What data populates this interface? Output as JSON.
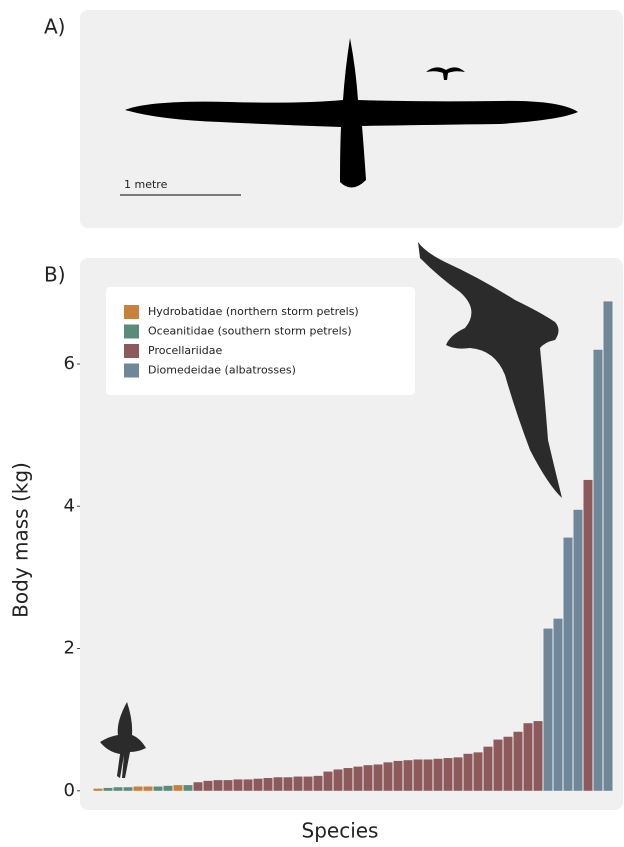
{
  "panel_a": {
    "label": "A)",
    "scale_label": "1 metre"
  },
  "chart_data": {
    "type": "bar",
    "panel_label": "B)",
    "x_label": "Species",
    "y_label": "Body mass (kg)",
    "ylim": [
      -0.27,
      7.49
    ],
    "yticks": [
      0,
      2,
      4,
      6
    ],
    "legend": "top-left",
    "series": [
      {
        "name": "Hydrobatidae (northern storm petrels)",
        "color": "#c8813a",
        "values": [
          0.03,
          null,
          null,
          null,
          0.06,
          0.06,
          null,
          null,
          0.08,
          null,
          null,
          null,
          null,
          null,
          null,
          null,
          null,
          null,
          null,
          null,
          null,
          null,
          null,
          null,
          null,
          null,
          null,
          null,
          null,
          null,
          null,
          null,
          null,
          null,
          null,
          null,
          null,
          null,
          null,
          null,
          null,
          null,
          null,
          null,
          null,
          null,
          null,
          null,
          null,
          null,
          null,
          null
        ]
      },
      {
        "name": "Oceanitidae (southern storm petrels)",
        "color": "#5b8c7b",
        "values": [
          null,
          0.04,
          0.05,
          0.05,
          null,
          null,
          0.06,
          0.07,
          null,
          0.08,
          null,
          null,
          null,
          null,
          null,
          null,
          null,
          null,
          null,
          null,
          null,
          null,
          null,
          null,
          null,
          null,
          null,
          null,
          null,
          null,
          null,
          null,
          null,
          null,
          null,
          null,
          null,
          null,
          null,
          null,
          null,
          null,
          null,
          null,
          null,
          null,
          null,
          null,
          null,
          null,
          null,
          null
        ]
      },
      {
        "name": "Procellariidae",
        "color": "#8c5a5a",
        "values": [
          null,
          null,
          null,
          null,
          null,
          null,
          null,
          null,
          null,
          null,
          0.12,
          0.14,
          0.15,
          0.15,
          0.16,
          0.16,
          0.17,
          0.18,
          0.19,
          0.19,
          0.2,
          0.2,
          0.21,
          0.27,
          0.3,
          0.32,
          0.34,
          0.36,
          0.37,
          0.4,
          0.42,
          0.43,
          0.44,
          0.44,
          0.45,
          0.46,
          0.47,
          0.52,
          0.54,
          0.62,
          0.72,
          0.76,
          0.83,
          0.95,
          0.98,
          null,
          null,
          null,
          null,
          4.37,
          null,
          null
        ]
      },
      {
        "name": "Diomedeidae (albatrosses)",
        "color": "#6f8799",
        "values": [
          null,
          null,
          null,
          null,
          null,
          null,
          null,
          null,
          null,
          null,
          null,
          null,
          null,
          null,
          null,
          null,
          null,
          null,
          null,
          null,
          null,
          null,
          null,
          null,
          null,
          null,
          null,
          null,
          null,
          null,
          null,
          null,
          null,
          null,
          null,
          null,
          null,
          null,
          null,
          null,
          null,
          null,
          null,
          null,
          null,
          2.28,
          2.42,
          3.56,
          3.95,
          null,
          6.2,
          6.88
        ]
      }
    ]
  }
}
